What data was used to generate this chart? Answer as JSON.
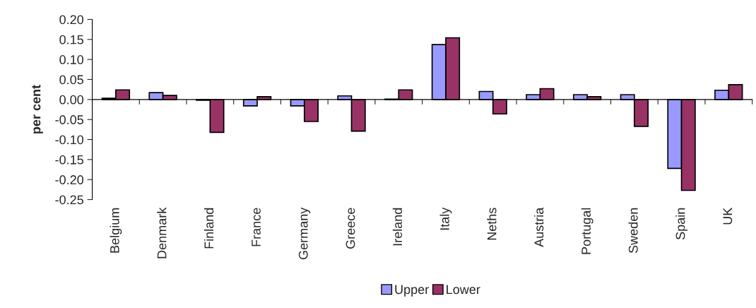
{
  "chart_data": {
    "type": "bar",
    "ylabel": "per cent",
    "categories": [
      "Belgium",
      "Denmark",
      "Finland",
      "France",
      "Germany",
      "Greece",
      "Ireland",
      "Italy",
      "Neths",
      "Austria",
      "Portugal",
      "Sweden",
      "Spain",
      "UK"
    ],
    "series": [
      {
        "name": "Upper",
        "color": "#9999ff",
        "values": [
          0.003,
          0.017,
          -0.002,
          -0.016,
          -0.016,
          0.009,
          0.001,
          0.137,
          0.02,
          0.012,
          0.012,
          0.012,
          -0.172,
          0.023
        ]
      },
      {
        "name": "Lower",
        "color": "#993366",
        "values": [
          0.024,
          0.01,
          -0.082,
          0.007,
          -0.055,
          -0.079,
          0.024,
          0.154,
          -0.036,
          0.027,
          0.007,
          -0.067,
          -0.227,
          0.037
        ]
      }
    ],
    "ylim": [
      -0.25,
      0.2
    ],
    "yticks": [
      {
        "value": -0.25,
        "label": "-0.25"
      },
      {
        "value": -0.2,
        "label": "-0.20"
      },
      {
        "value": -0.15,
        "label": "-0.15"
      },
      {
        "value": -0.1,
        "label": "-0.10"
      },
      {
        "value": -0.05,
        "label": "-0.05"
      },
      {
        "value": 0,
        "label": "0.00"
      },
      {
        "value": 0.05,
        "label": "0.05"
      },
      {
        "value": 0.1,
        "label": "0.10"
      },
      {
        "value": 0.15,
        "label": "0.15"
      },
      {
        "value": 0.2,
        "label": "0.20"
      }
    ],
    "legend": "bottom"
  }
}
